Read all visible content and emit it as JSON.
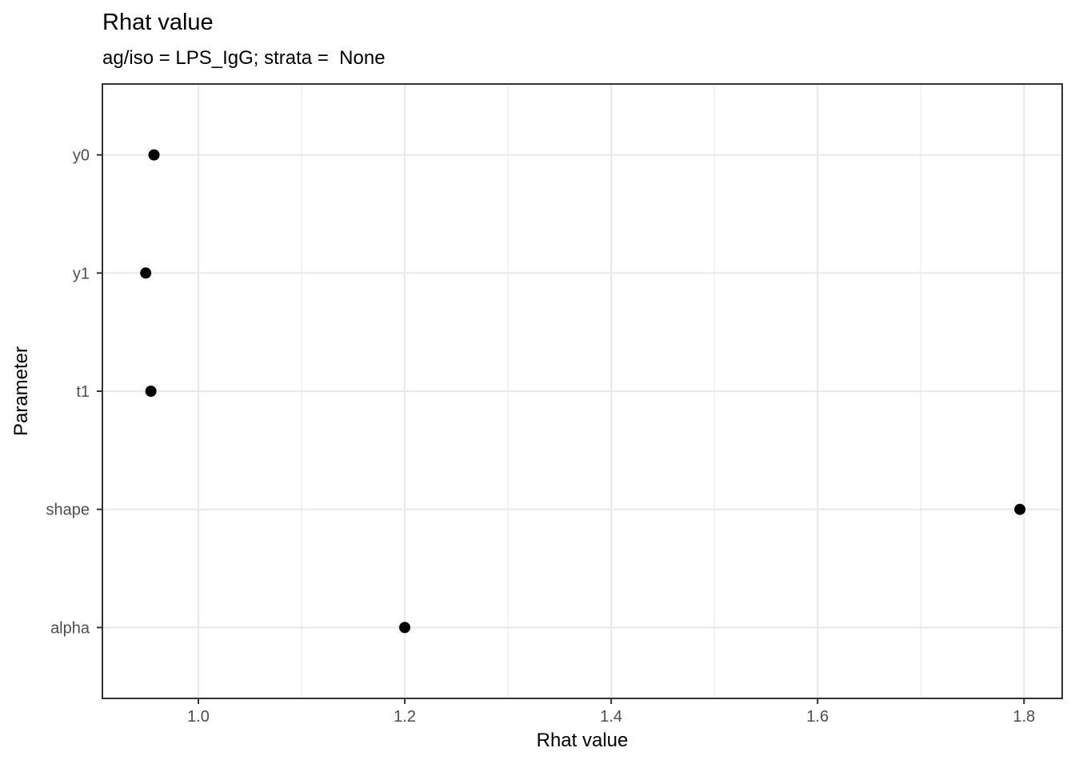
{
  "chart": {
    "title": "Rhat value",
    "subtitle": "ag/iso = LPS_IgG; strata =  None",
    "x_axis_title": "Rhat value",
    "y_axis_title": "Parameter"
  },
  "chart_data": {
    "type": "scatter",
    "title": "Rhat value",
    "subtitle": "ag/iso = LPS_IgG; strata =  None",
    "xlabel": "Rhat value",
    "ylabel": "Parameter",
    "categories": [
      "y0",
      "y1",
      "t1",
      "shape",
      "alpha"
    ],
    "points": [
      {
        "param": "y0",
        "value": 0.957
      },
      {
        "param": "y1",
        "value": 0.949
      },
      {
        "param": "t1",
        "value": 0.954
      },
      {
        "param": "shape",
        "value": 1.796
      },
      {
        "param": "alpha",
        "value": 1.2
      }
    ],
    "x_ticks": [
      1.0,
      1.2,
      1.4,
      1.6,
      1.8
    ],
    "x_tick_labels": [
      "1.0",
      "1.2",
      "1.4",
      "1.6",
      "1.8"
    ],
    "x_minor_ticks": [
      1.1,
      1.3,
      1.5,
      1.7
    ],
    "x_range": [
      0.907,
      1.837
    ],
    "grid": "on",
    "legend": "none",
    "style": {
      "point_color": "#000000",
      "grid_major_color": "#e8e8e8",
      "grid_minor_color": "#f0f0f0",
      "panel_border_color": "#333333",
      "tick_color": "#333333",
      "axis_text_color": "#4d4d4d",
      "panel_background": "#ffffff"
    }
  }
}
